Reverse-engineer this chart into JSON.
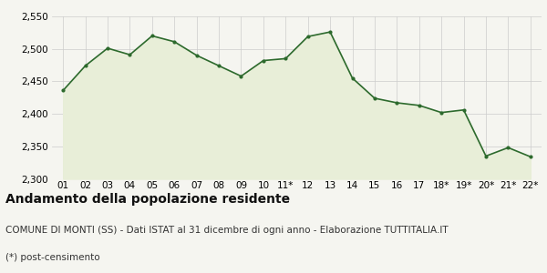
{
  "x_labels": [
    "01",
    "02",
    "03",
    "04",
    "05",
    "06",
    "07",
    "08",
    "09",
    "10",
    "11*",
    "12",
    "13",
    "14",
    "15",
    "16",
    "17",
    "18*",
    "19*",
    "20*",
    "21*",
    "22*"
  ],
  "y_values": [
    2436,
    2474,
    2501,
    2491,
    2520,
    2511,
    2490,
    2474,
    2458,
    2482,
    2485,
    2519,
    2526,
    2455,
    2424,
    2417,
    2413,
    2402,
    2406,
    2335,
    2348,
    2334
  ],
  "line_color": "#2d6a2d",
  "fill_color": "#e8eed8",
  "marker_color": "#2d6a2d",
  "bg_color": "#f5f5f0",
  "grid_color": "#cccccc",
  "title": "Andamento della popolazione residente",
  "subtitle": "COMUNE DI MONTI (SS) - Dati ISTAT al 31 dicembre di ogni anno - Elaborazione TUTTITALIA.IT",
  "footnote": "(*) post-censimento",
  "ylim_min": 2300,
  "ylim_max": 2550,
  "yticks": [
    2300,
    2350,
    2400,
    2450,
    2500,
    2550
  ],
  "title_fontsize": 10,
  "subtitle_fontsize": 7.5,
  "footnote_fontsize": 7.5,
  "tick_fontsize": 7.5
}
